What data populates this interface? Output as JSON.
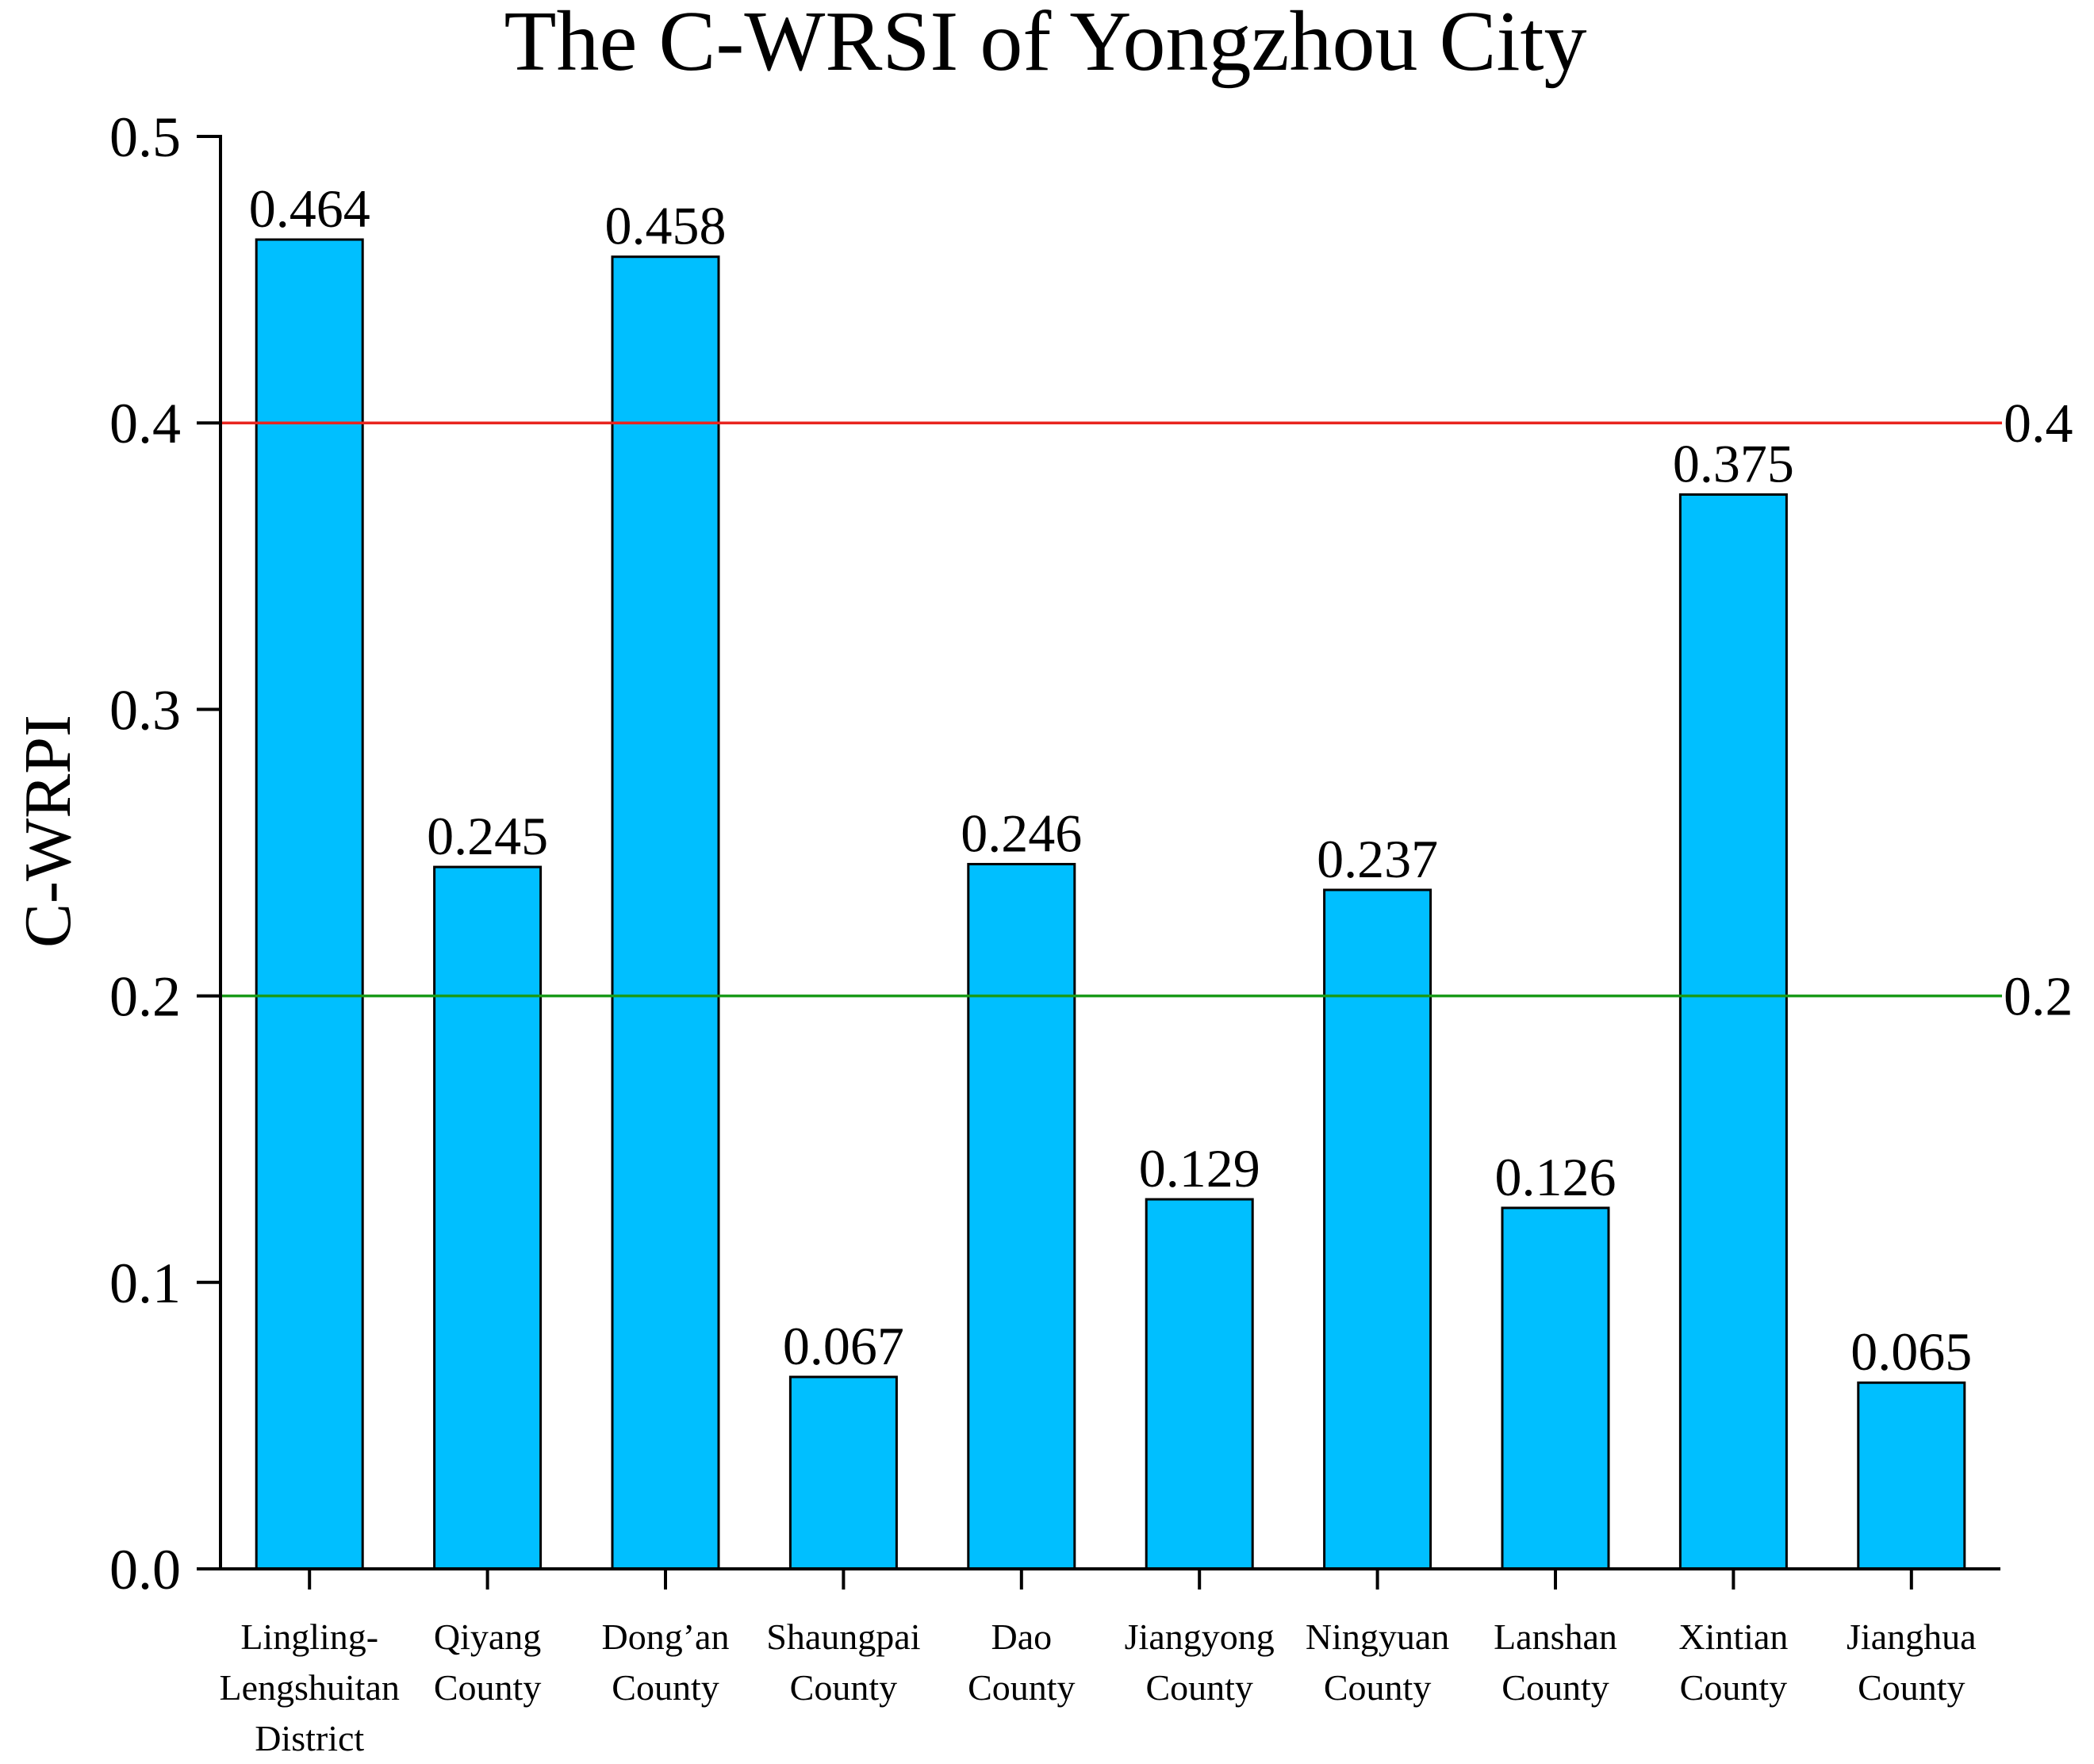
{
  "chart_data": {
    "type": "bar",
    "title": "The C-WRSI of Yongzhou City",
    "ylabel": "C-WRPI",
    "xlabel": "",
    "ylim": [
      0,
      0.5
    ],
    "yticks": [
      "0.0",
      "0.1",
      "0.2",
      "0.3",
      "0.4",
      "0.5"
    ],
    "categories": [
      [
        "Lingling-",
        "Lengshuitan",
        "District"
      ],
      [
        "Qiyang",
        "County"
      ],
      [
        "Dong’an",
        "County"
      ],
      [
        "Shaungpai",
        "County"
      ],
      [
        "Dao",
        "County"
      ],
      [
        "Jiangyong",
        "County"
      ],
      [
        "Ningyuan",
        "County"
      ],
      [
        "Lanshan",
        "County"
      ],
      [
        "Xintian",
        "County"
      ],
      [
        "Jianghua",
        "County"
      ]
    ],
    "values": [
      0.464,
      0.245,
      0.458,
      0.067,
      0.246,
      0.129,
      0.237,
      0.126,
      0.375,
      0.065
    ],
    "value_labels": [
      "0.464",
      "0.245",
      "0.458",
      "0.067",
      "0.246",
      "0.129",
      "0.237",
      "0.126",
      "0.375",
      "0.065"
    ],
    "reference_lines": [
      {
        "value": 0.4,
        "label": "0.4",
        "color": "#e8251f"
      },
      {
        "value": 0.2,
        "label": "0.2",
        "color": "#1a9a1a"
      }
    ],
    "bar_color": "#00bfff",
    "bar_edge_color": "#000000",
    "grid": false
  }
}
